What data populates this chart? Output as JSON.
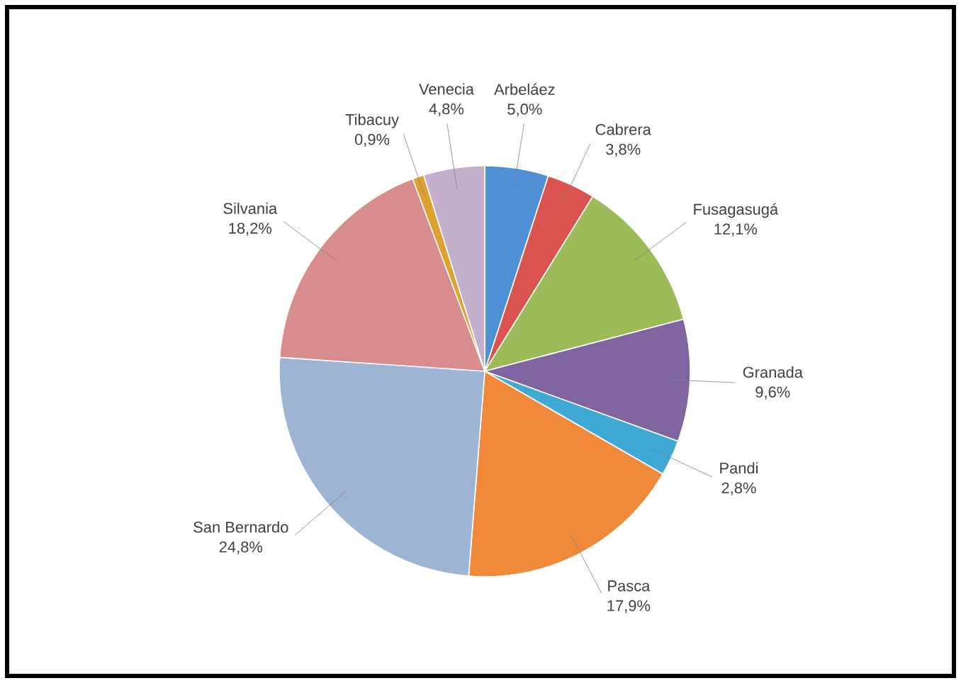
{
  "chart_data": {
    "type": "pie",
    "categories": [
      "Arbeláez",
      "Cabrera",
      "Fusagasugá",
      "Granada",
      "Pandi",
      "Pasca",
      "San Bernardo",
      "Silvania",
      "Tibacuy",
      "Venecia"
    ],
    "values": [
      5.0,
      3.8,
      12.1,
      9.6,
      2.8,
      17.9,
      24.8,
      18.2,
      0.9,
      4.8
    ],
    "value_labels": [
      "5,0%",
      "3,8%",
      "12,1%",
      "9,6%",
      "2,8%",
      "17,9%",
      "24,8%",
      "18,2%",
      "0,9%",
      "4,8%"
    ],
    "colors": [
      "#4f8fd6",
      "#d9534f",
      "#9bbb59",
      "#8064a2",
      "#3fa9d6",
      "#f0883a",
      "#9db4d4",
      "#d98c8c",
      "#e0a030",
      "#c4b0cc"
    ]
  }
}
